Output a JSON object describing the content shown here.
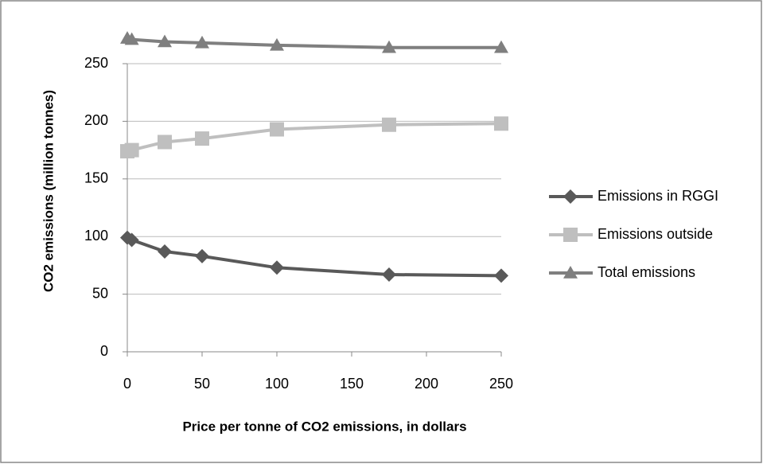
{
  "chart_data": {
    "type": "line",
    "x_label": "Price per tonne of CO2 emissions, in dollars",
    "y_label": "CO2 emissions (million tonnes)",
    "x": [
      0,
      3,
      25,
      50,
      100,
      175,
      250
    ],
    "series": [
      {
        "name": "Emissions in RGGI",
        "color": "#595959",
        "marker": "diamond",
        "values": [
          99,
          97,
          87,
          83,
          73,
          67,
          66
        ]
      },
      {
        "name": "Emissions outside",
        "color": "#bfbfbf",
        "marker": "square",
        "values": [
          174,
          175,
          182,
          185,
          193,
          197,
          198
        ]
      },
      {
        "name": "Total emissions",
        "color": "#7f7f7f",
        "marker": "triangle",
        "values": [
          272,
          271,
          269,
          268,
          266,
          264,
          264
        ]
      }
    ],
    "xlim": [
      0,
      250
    ],
    "xticks": [
      0,
      50,
      100,
      150,
      200,
      250
    ],
    "ylim": [
      0,
      250
    ],
    "yticks": [
      0,
      50,
      100,
      150,
      200,
      250
    ],
    "grid": true,
    "legend": "right"
  }
}
